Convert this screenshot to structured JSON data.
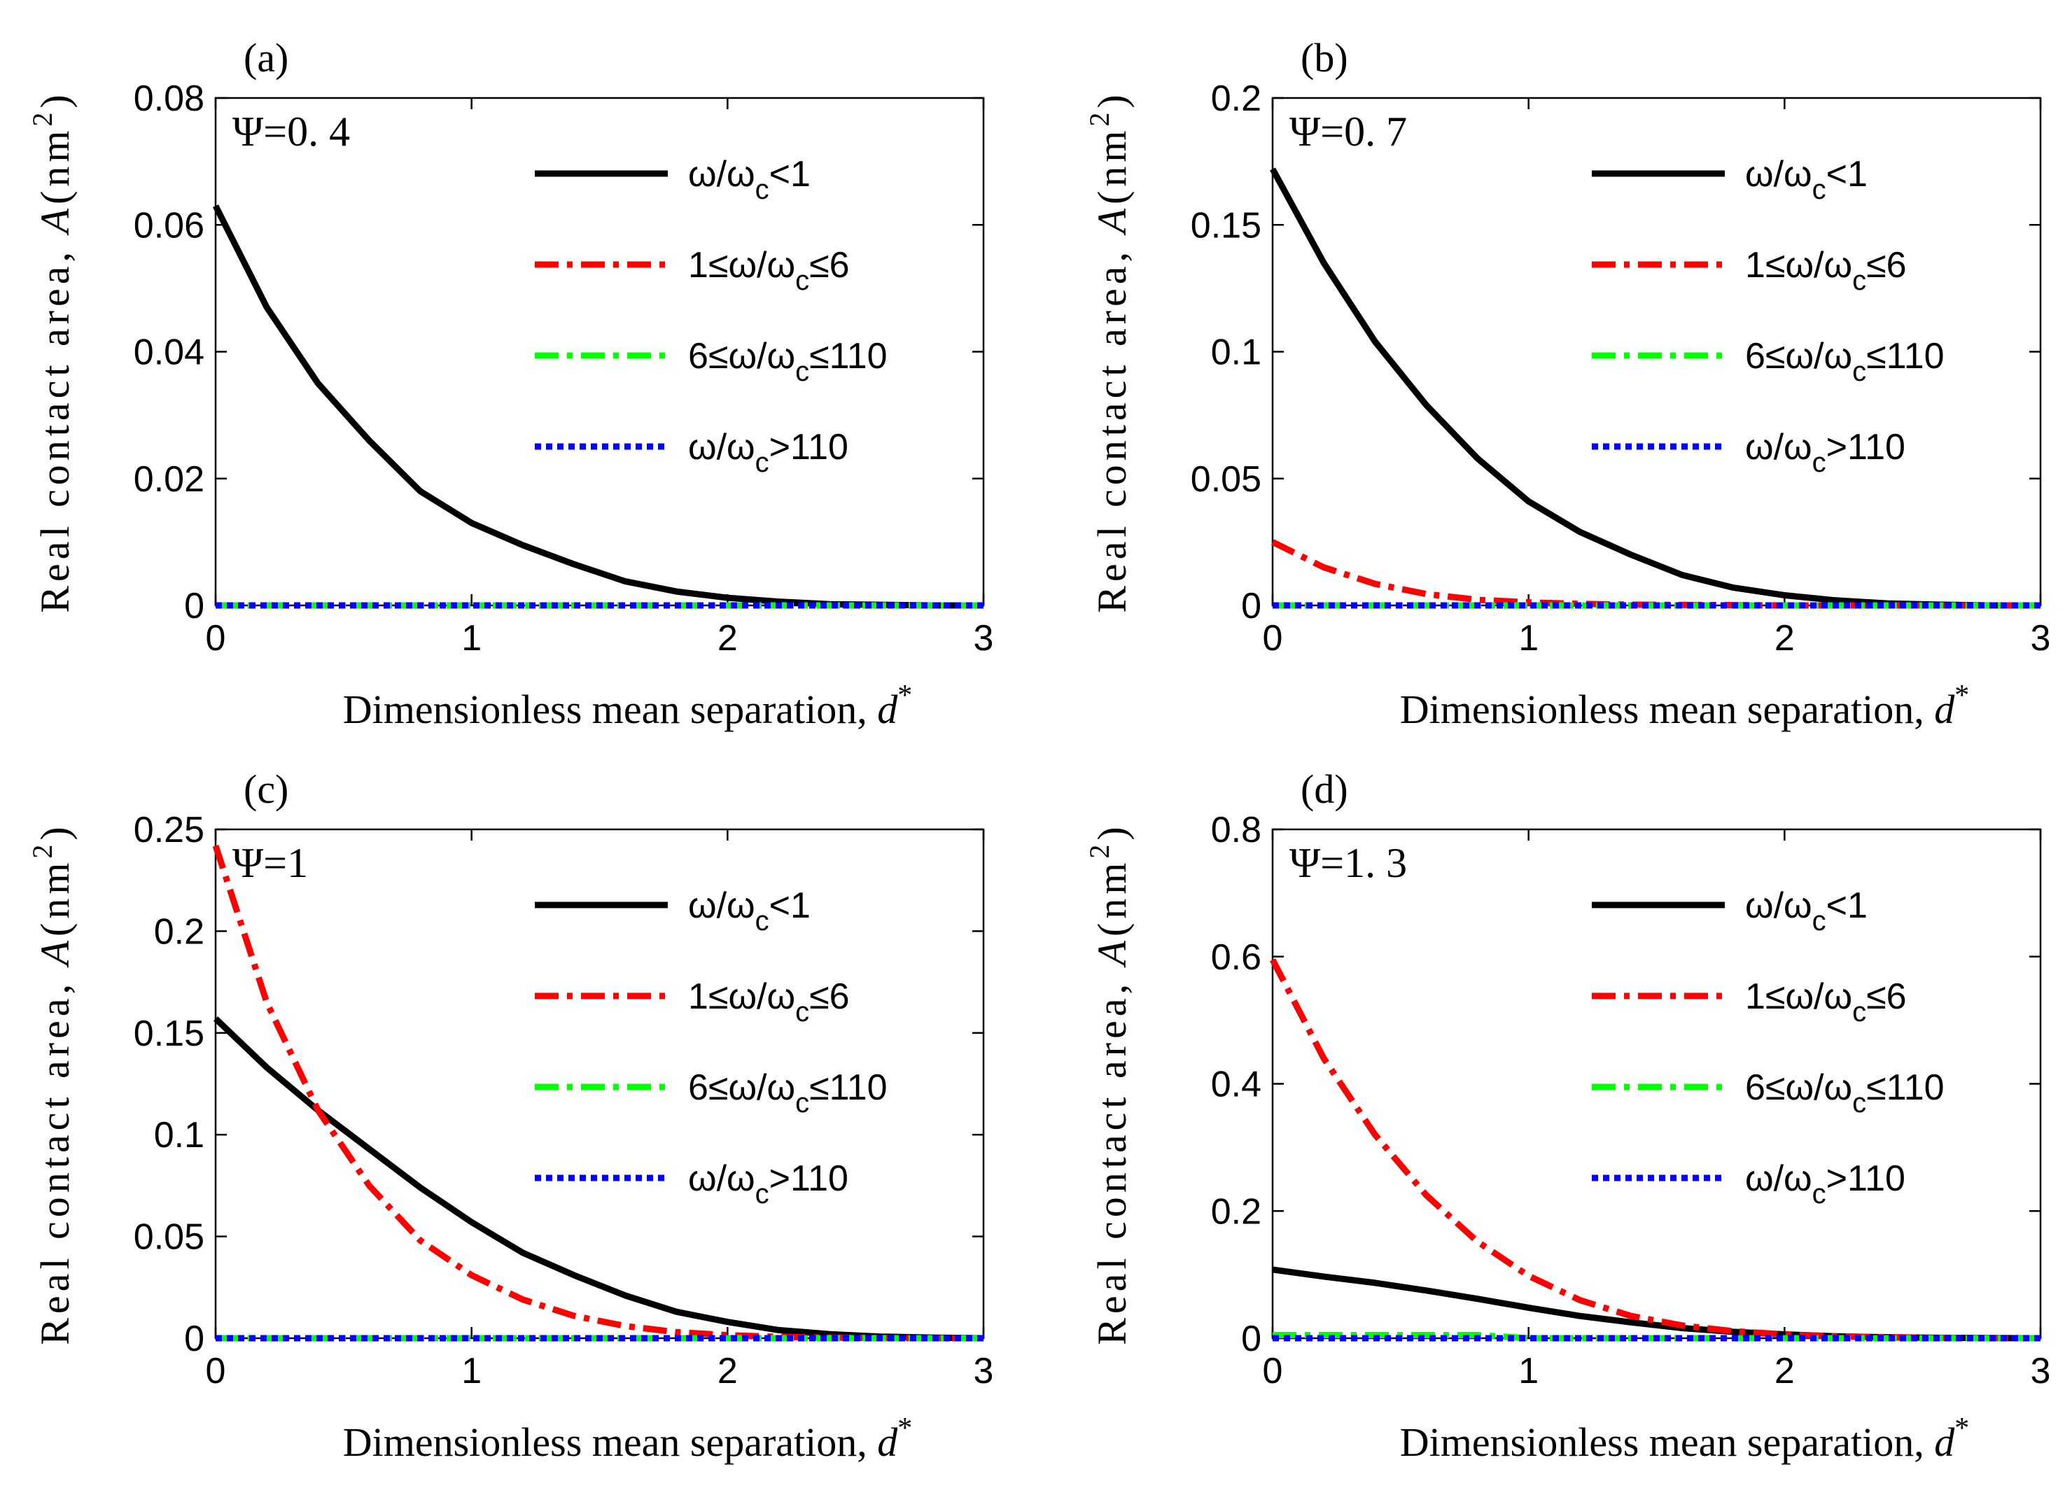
{
  "figure": {
    "legend_entries": [
      {
        "label": "ω/ωc<1",
        "html": "ω/ω<tspan class='sub'>c</tspan><1",
        "color": "#000000",
        "style": "solid"
      },
      {
        "label": "1≤ω/ωc≤6",
        "color": "#ff0000",
        "style": "dashdot"
      },
      {
        "label": "6≤ω/ωc≤110",
        "color": "#00ff00",
        "style": "dashdot"
      },
      {
        "label": "ω/ωc>110",
        "color": "#0000ff",
        "style": "dotted"
      }
    ],
    "legend_parts": [
      {
        "pre": "ω/ω",
        "sub": "c",
        "post": "<1"
      },
      {
        "pre": "1≤ω/ω",
        "sub": "c",
        "post": "≤6"
      },
      {
        "pre": "6≤ω/ω",
        "sub": "c",
        "post": "≤110"
      },
      {
        "pre": "ω/ω",
        "sub": "c",
        "post": ">110"
      }
    ],
    "xlabel_text": "Dimensionless mean separation, ",
    "xlabel_var": "d",
    "xlabel_sup": "*",
    "ylabel_text": "Real contact area, ",
    "ylabel_var": "A",
    "ylabel_unit_pre": "(nm",
    "ylabel_unit_sup": "2",
    "ylabel_unit_post": ")"
  },
  "chart_data": [
    {
      "type": "line",
      "panel_label": "(a)",
      "annotation": "Ψ=0. 4",
      "xlim": [
        0,
        3
      ],
      "ylim": [
        0,
        0.08
      ],
      "xticks": [
        "0",
        "1",
        "2",
        "3"
      ],
      "yticks": [
        "0",
        "0.02",
        "0.04",
        "0.06",
        "0.08"
      ],
      "x": [
        0,
        0.2,
        0.4,
        0.6,
        0.8,
        1.0,
        1.2,
        1.4,
        1.6,
        1.8,
        2.0,
        2.2,
        2.4,
        2.6,
        2.8,
        3.0
      ],
      "series": [
        {
          "name": "ω/ωc<1",
          "values": [
            0.063,
            0.047,
            0.035,
            0.026,
            0.018,
            0.013,
            0.0095,
            0.0065,
            0.0038,
            0.0022,
            0.0012,
            0.0006,
            0.0002,
            0.0001,
            0,
            0
          ]
        },
        {
          "name": "1≤ω/ωc≤6",
          "values": [
            0,
            0,
            0,
            0,
            0,
            0,
            0,
            0,
            0,
            0,
            0,
            0,
            0,
            0,
            0,
            0
          ]
        },
        {
          "name": "6≤ω/ωc≤110",
          "values": [
            0,
            0,
            0,
            0,
            0,
            0,
            0,
            0,
            0,
            0,
            0,
            0,
            0,
            0,
            0,
            0
          ]
        },
        {
          "name": "ω/ωc>110",
          "values": [
            0,
            0,
            0,
            0,
            0,
            0,
            0,
            0,
            0,
            0,
            0,
            0,
            0,
            0,
            0,
            0
          ]
        }
      ]
    },
    {
      "type": "line",
      "panel_label": "(b)",
      "annotation": "Ψ=0. 7",
      "xlim": [
        0,
        3
      ],
      "ylim": [
        0,
        0.2
      ],
      "xticks": [
        "0",
        "1",
        "2",
        "3"
      ],
      "yticks": [
        "0",
        "0.05",
        "0.1",
        "0.15",
        "0.2"
      ],
      "x": [
        0,
        0.2,
        0.4,
        0.6,
        0.8,
        1.0,
        1.2,
        1.4,
        1.6,
        1.8,
        2.0,
        2.2,
        2.4,
        2.6,
        2.8,
        3.0
      ],
      "series": [
        {
          "name": "ω/ωc<1",
          "values": [
            0.172,
            0.135,
            0.104,
            0.079,
            0.058,
            0.041,
            0.029,
            0.02,
            0.012,
            0.007,
            0.004,
            0.002,
            0.0008,
            0.0003,
            0,
            0
          ]
        },
        {
          "name": "1≤ω/ωc≤6",
          "values": [
            0.025,
            0.015,
            0.0085,
            0.0045,
            0.0022,
            0.0012,
            0.0006,
            0.0003,
            0.0002,
            0.0001,
            0,
            0,
            0,
            0,
            0,
            0
          ]
        },
        {
          "name": "6≤ω/ωc≤110",
          "values": [
            0,
            0,
            0,
            0,
            0,
            0,
            0,
            0,
            0,
            0,
            0,
            0,
            0,
            0,
            0,
            0
          ]
        },
        {
          "name": "ω/ωc>110",
          "values": [
            0,
            0,
            0,
            0,
            0,
            0,
            0,
            0,
            0,
            0,
            0,
            0,
            0,
            0,
            0,
            0
          ]
        }
      ]
    },
    {
      "type": "line",
      "panel_label": "(c)",
      "annotation": "Ψ=1",
      "xlim": [
        0,
        3
      ],
      "ylim": [
        0,
        0.25
      ],
      "xticks": [
        "0",
        "1",
        "2",
        "3"
      ],
      "yticks": [
        "0",
        "0.05",
        "0.1",
        "0.15",
        "0.2",
        "0.25"
      ],
      "x": [
        0,
        0.2,
        0.4,
        0.6,
        0.8,
        1.0,
        1.2,
        1.4,
        1.6,
        1.8,
        2.0,
        2.2,
        2.4,
        2.6,
        2.8,
        3.0
      ],
      "series": [
        {
          "name": "ω/ωc<1",
          "values": [
            0.157,
            0.133,
            0.112,
            0.093,
            0.074,
            0.057,
            0.042,
            0.031,
            0.021,
            0.013,
            0.008,
            0.004,
            0.002,
            0.0008,
            0.0003,
            0
          ]
        },
        {
          "name": "1≤ω/ωc≤6",
          "values": [
            0.242,
            0.165,
            0.112,
            0.075,
            0.048,
            0.031,
            0.019,
            0.011,
            0.006,
            0.003,
            0.0015,
            0.0007,
            0.0003,
            0.0001,
            0,
            0
          ]
        },
        {
          "name": "6≤ω/ωc≤110",
          "values": [
            0,
            0,
            0,
            0,
            0,
            0,
            0,
            0,
            0,
            0,
            0,
            0,
            0,
            0,
            0,
            0
          ]
        },
        {
          "name": "ω/ωc>110",
          "values": [
            0,
            0,
            0,
            0,
            0,
            0,
            0,
            0,
            0,
            0,
            0,
            0,
            0,
            0,
            0,
            0
          ]
        }
      ]
    },
    {
      "type": "line",
      "panel_label": "(d)",
      "annotation": "Ψ=1. 3",
      "xlim": [
        0,
        3
      ],
      "ylim": [
        0,
        0.8
      ],
      "xticks": [
        "0",
        "1",
        "2",
        "3"
      ],
      "yticks": [
        "0",
        "0.2",
        "0.4",
        "0.6",
        "0.8"
      ],
      "x": [
        0,
        0.2,
        0.4,
        0.6,
        0.8,
        1.0,
        1.2,
        1.4,
        1.6,
        1.8,
        2.0,
        2.2,
        2.4,
        2.6,
        2.8,
        3.0
      ],
      "series": [
        {
          "name": "ω/ωc<1",
          "values": [
            0.108,
            0.097,
            0.087,
            0.075,
            0.062,
            0.048,
            0.035,
            0.025,
            0.016,
            0.01,
            0.006,
            0.003,
            0.0015,
            0.0007,
            0.0003,
            0
          ]
        },
        {
          "name": "1≤ω/ωc≤6",
          "values": [
            0.595,
            0.44,
            0.32,
            0.225,
            0.152,
            0.098,
            0.06,
            0.035,
            0.02,
            0.011,
            0.006,
            0.003,
            0.0015,
            0.0007,
            0.0003,
            0
          ]
        },
        {
          "name": "6≤ω/ωc≤110",
          "values": [
            0.005,
            0.005,
            0.005,
            0.005,
            0.005,
            0,
            0,
            0,
            0,
            0,
            0,
            0,
            0,
            0,
            0,
            0
          ]
        },
        {
          "name": "ω/ωc>110",
          "values": [
            0,
            0,
            0,
            0,
            0,
            0,
            0,
            0,
            0,
            0,
            0,
            0,
            0,
            0,
            0,
            0
          ]
        }
      ]
    }
  ]
}
